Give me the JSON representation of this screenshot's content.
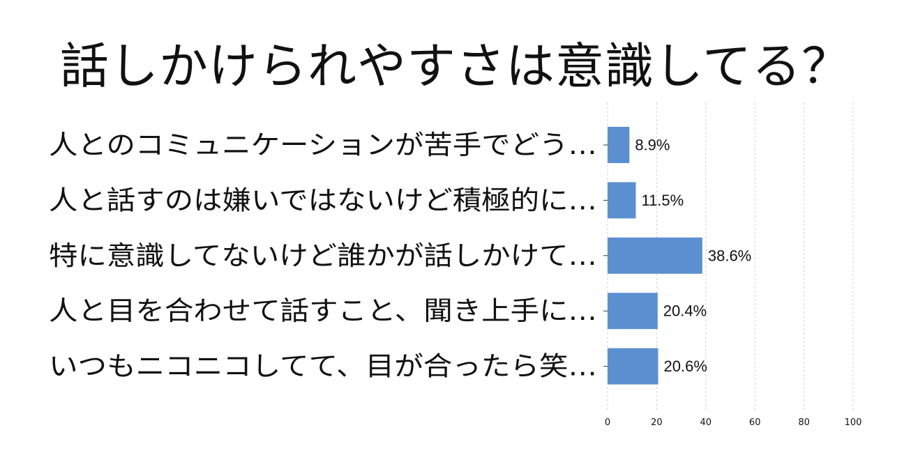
{
  "chart_data": {
    "type": "bar",
    "orientation": "horizontal",
    "title": "話しかけられやすさは意識してる？",
    "categories": [
      "人とのコミュニケーションが苦手でどう…",
      "人と話すのは嫌いではないけど積極的に…",
      "特に意識してないけど誰かが話しかけて…",
      "人と目を合わせて話すこと、聞き上手に…",
      "いつもニコニコしてて、目が合ったら笑…"
    ],
    "values": [
      8.9,
      11.5,
      38.6,
      20.4,
      20.6
    ],
    "value_labels": [
      "8.9%",
      "11.5%",
      "38.6%",
      "20.4%",
      "20.6%"
    ],
    "xlim": [
      0,
      100
    ],
    "xticks": [
      0,
      20,
      40,
      60,
      80,
      100
    ],
    "xlabel": "",
    "ylabel": "",
    "grid": "vertical dashed",
    "legend": "none",
    "bar_color": "#5b8fd0",
    "grid_color": "#cfcfcf"
  }
}
